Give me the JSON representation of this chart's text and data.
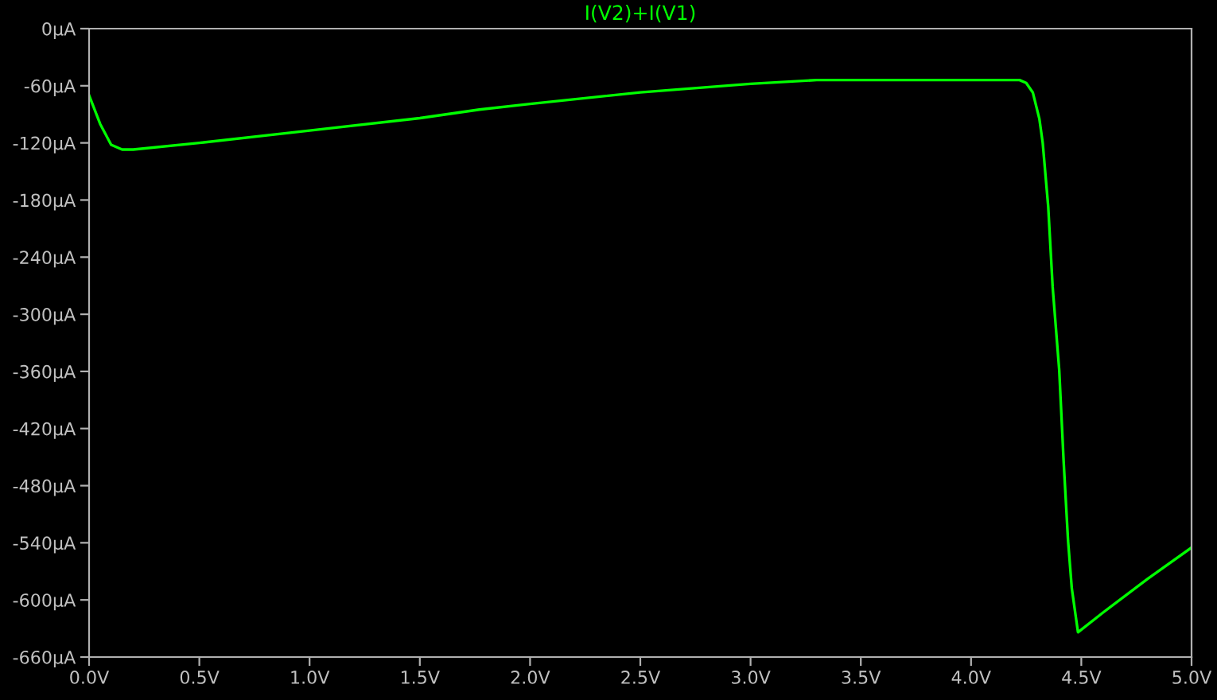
{
  "chart_data": {
    "type": "line",
    "title": "I(V2)+I(V1)",
    "series": [
      {
        "color": "#00ff00",
        "x": [
          0.0,
          0.05,
          0.1,
          0.15,
          0.2,
          0.5,
          1.0,
          1.5,
          1.77,
          2.0,
          2.5,
          3.0,
          3.3,
          3.5,
          4.0,
          4.22,
          4.25,
          4.28,
          4.31,
          4.325,
          4.35,
          4.37,
          4.4,
          4.42,
          4.44,
          4.457,
          4.485,
          4.6,
          4.8,
          5.0
        ],
        "values": [
          -70,
          -100,
          -122,
          -127,
          -127,
          -120,
          -107,
          -94,
          -85,
          -79,
          -67,
          -58,
          -54,
          -54,
          -54,
          -54,
          -57,
          -67,
          -95,
          -120,
          -187,
          -271,
          -359,
          -455,
          -538,
          -588,
          -634,
          -613,
          -578,
          -545
        ]
      }
    ],
    "xlim": [
      0,
      5
    ],
    "ylim": [
      -660,
      0
    ],
    "xticks": [
      {
        "value": 0,
        "label": "0.0V"
      },
      {
        "value": 0.5,
        "label": "0.5V"
      },
      {
        "value": 1,
        "label": "1.0V"
      },
      {
        "value": 1.5,
        "label": "1.5V"
      },
      {
        "value": 2,
        "label": "2.0V"
      },
      {
        "value": 2.5,
        "label": "2.5V"
      },
      {
        "value": 3,
        "label": "3.0V"
      },
      {
        "value": 3.5,
        "label": "3.5V"
      },
      {
        "value": 4,
        "label": "4.0V"
      },
      {
        "value": 4.5,
        "label": "4.5V"
      },
      {
        "value": 5,
        "label": "5.0V"
      }
    ],
    "yticks": [
      {
        "value": 0,
        "label": "0µA"
      },
      {
        "value": -60,
        "label": "-60µA"
      },
      {
        "value": -120,
        "label": "-120µA"
      },
      {
        "value": -180,
        "label": "-180µA"
      },
      {
        "value": -240,
        "label": "-240µA"
      },
      {
        "value": -300,
        "label": "-300µA"
      },
      {
        "value": -360,
        "label": "-360µA"
      },
      {
        "value": -420,
        "label": "-420µA"
      },
      {
        "value": -480,
        "label": "-480µA"
      },
      {
        "value": -540,
        "label": "-540µA"
      },
      {
        "value": -600,
        "label": "-600µA"
      },
      {
        "value": -660,
        "label": "-660µA"
      }
    ],
    "grid": false,
    "marker": "none",
    "line_style": "solid"
  }
}
